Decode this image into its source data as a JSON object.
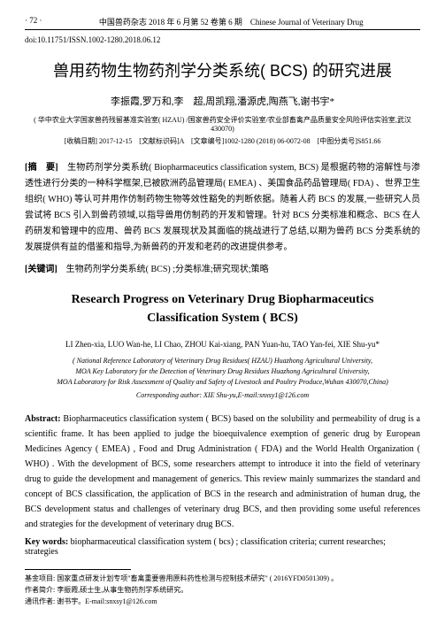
{
  "header": {
    "page_num_left": "· 72 ·",
    "journal_center": "中国兽药杂志 2018 年 6 月第 52 卷第 6 期",
    "journal_right": "Chinese Journal of Veterinary Drug"
  },
  "doi": "doi:10.11751/ISSN.1002-1280.2018.06.12",
  "title_cn": "兽用药物生物药剂学分类系统( BCS) 的研究进展",
  "authors_cn": "李振霞,罗万和,李　超,周凯翔,潘源虎,陶燕飞,谢书宇*",
  "affiliation_cn": "( 华中农业大学国家兽药残留基准实验室( HZAU) /国家兽药安全评价实验室/农业部畜禽产品质量安全风险评估实验室,武汉 430070)",
  "meta_cn": "[收稿日期] 2017-12-15　[文献标识码]A　[文章编号]1002-1280 (2018) 06-0072-08　[中图分类号]S851.66",
  "abstract_label_cn": "[摘　要]",
  "abstract_cn": "　生物药剂学分类系统( Biopharmaceutics classification system, BCS) 是根据药物的溶解性与渗透性进行分类的一种科学框架,已被欧洲药品管理局( EMEA) 、美国食品药品管理局( FDA) 、世界卫生组织( WHO) 等认可并用作仿制药物生物等效性豁免的判断依据。随着人药 BCS 的发展,一些研究人员尝试将 BCS 引入到兽药领域,以指导兽用仿制药的开发和管理。针对 BCS 分类标准和概念、BCS 在人药研发和管理中的应用、兽药 BCS 发展现状及其面临的挑战进行了总结,以期为兽药 BCS 分类系统的发展提供有益的借鉴和指导,为新兽药的开发和老药的改进提供参考。",
  "keywords_label_cn": "[关键词]",
  "keywords_cn": "　生物药剂学分类系统( BCS) ;分类标准;研究现状;策略",
  "title_en_line1": "Research Progress on Veterinary Drug Biopharmaceutics",
  "title_en_line2": "Classification System ( BCS)",
  "authors_en": "LI Zhen-xia, LUO Wan-he, LI Chao, ZHOU Kai-xiang, PAN Yuan-hu, TAO Yan-fei, XIE Shu-yu*",
  "affiliation_en_1": "( National Reference Laboratory of Veterinary Drug Residues( HZAU) Huazhong Agricultural University,",
  "affiliation_en_2": "MOA Key Laboratory for the Detection of Veterinary Drug Residues Huazhong Agricultural University,",
  "affiliation_en_3": "MOA Laboratory for Risk Assessment of Quality and Safety of Livestock and Poultry Produce,Wuhan 430070,China)",
  "corresponding_en": "Corresponding author: XIE Shu-yu,E-mail:snxsy1@126.com",
  "abstract_label_en": "Abstract:",
  "abstract_en": " Biopharmaceutics classification system ( BCS) based on the solubility and permeability of drug is a scientific frame. It has been applied to judge the bioequivalence exemption of generic drug by European Medicines Agency ( EMEA) , Food and Drug Administration ( FDA) and the World Health Organization ( WHO) . With the development of BCS, some researchers attempt to introduce it into the field of veterinary drug to guide the development and management of generics. This review mainly summarizes the standard and concept of BCS classification, the application of BCS in the research and administration of human drug, the BCS development status and challenges of veterinary drug BCS, and then providing some useful references and strategies for the development of veterinary drug BCS.",
  "keywords_label_en": "Key words:",
  "keywords_en": " biopharmaceutical classification system ( bcs) ; classification criteria; current researches; strategies",
  "footer": {
    "fund": "基金项目: 国家重点研发计划专项\"畜禽重要兽用原料药性检测与控制技术研究\" ( 2016YFD0501309) 。",
    "author_intro": "作者简介: 李振霞,硕士生,从事生物药剂学系统研究。",
    "correspond": "通讯作者: 谢书宇。E-mail:snxsy1@126.com"
  }
}
